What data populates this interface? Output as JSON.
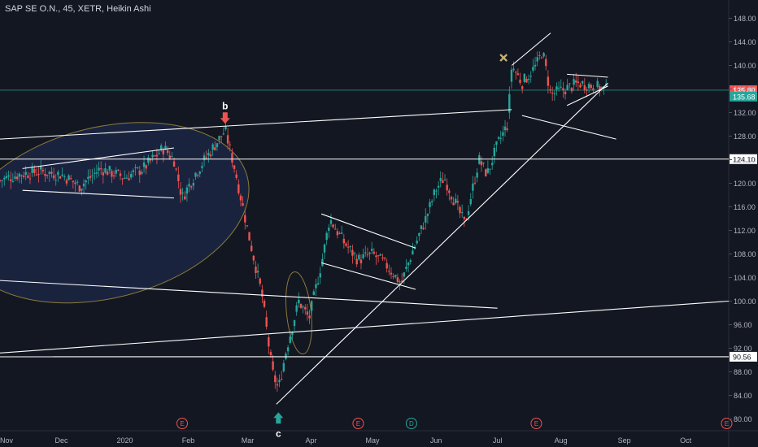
{
  "header": {
    "title": "SAP SE O.N., 45, XETR, Heikin Ashi"
  },
  "colors": {
    "background": "#131722",
    "up": "#26a69a",
    "down": "#ef5350",
    "axis_text": "#b2b5be",
    "drawing": "#ffffff",
    "ellipse_outline": "#8a7a3a",
    "last_price_line": "#26a69a",
    "marker_b": "#ef5350",
    "marker_c": "#26a69a",
    "x_mark": "#c9b26b"
  },
  "chart_data": {
    "type": "candlestick",
    "style": "Heikin Ashi",
    "ylim": [
      78,
      150
    ],
    "xlim": [
      "2019-11-01",
      "2020-10-22"
    ],
    "y_ticks": [
      80,
      84,
      88,
      92,
      96,
      100,
      104,
      108,
      112,
      116,
      120,
      124,
      128,
      132,
      136,
      140,
      144,
      148
    ],
    "y_tick_labels": [
      "80.00",
      "84.00",
      "88.00",
      "92.00",
      "96.00",
      "100.00",
      "104.00",
      "108.00",
      "112.00",
      "116.00",
      "120.00",
      "124.00",
      "128.00",
      "132.00",
      "136.00",
      "140.00",
      "144.00",
      "148.00"
    ],
    "x_ticks": [
      {
        "date": "2019-11-01",
        "label": "Nov"
      },
      {
        "date": "2019-12-01",
        "label": "Dec"
      },
      {
        "date": "2020-01-01",
        "label": "2020"
      },
      {
        "date": "2020-02-01",
        "label": "Feb"
      },
      {
        "date": "2020-03-01",
        "label": "Mar"
      },
      {
        "date": "2020-04-01",
        "label": "Apr"
      },
      {
        "date": "2020-05-01",
        "label": "May"
      },
      {
        "date": "2020-06-01",
        "label": "Jun"
      },
      {
        "date": "2020-07-01",
        "label": "Jul"
      },
      {
        "date": "2020-08-01",
        "label": "Aug"
      },
      {
        "date": "2020-09-01",
        "label": "Sep"
      },
      {
        "date": "2020-10-01",
        "label": "Oct"
      }
    ],
    "price_path": [
      [
        "2019-11-01",
        120.5
      ],
      [
        "2019-11-10",
        121.5
      ],
      [
        "2019-11-20",
        122
      ],
      [
        "2019-12-01",
        121.5
      ],
      [
        "2019-12-10",
        119.5
      ],
      [
        "2019-12-20",
        122.5
      ],
      [
        "2020-01-01",
        121
      ],
      [
        "2020-01-10",
        122.5
      ],
      [
        "2020-01-20",
        126
      ],
      [
        "2020-01-25",
        124
      ],
      [
        "2020-01-29",
        117.5
      ],
      [
        "2020-02-05",
        122
      ],
      [
        "2020-02-12",
        125.5
      ],
      [
        "2020-02-19",
        129
      ],
      [
        "2020-02-24",
        122
      ],
      [
        "2020-03-01",
        112
      ],
      [
        "2020-03-08",
        101
      ],
      [
        "2020-03-13",
        88
      ],
      [
        "2020-03-16",
        85
      ],
      [
        "2020-03-20",
        92
      ],
      [
        "2020-03-26",
        100
      ],
      [
        "2020-03-31",
        97
      ],
      [
        "2020-04-07",
        108
      ],
      [
        "2020-04-10",
        114
      ],
      [
        "2020-04-17",
        110
      ],
      [
        "2020-04-24",
        107
      ],
      [
        "2020-05-01",
        108
      ],
      [
        "2020-05-08",
        106
      ],
      [
        "2020-05-15",
        103
      ],
      [
        "2020-05-20",
        108
      ],
      [
        "2020-05-27",
        114
      ],
      [
        "2020-06-01",
        119
      ],
      [
        "2020-06-05",
        121
      ],
      [
        "2020-06-10",
        117
      ],
      [
        "2020-06-15",
        113
      ],
      [
        "2020-06-22",
        124
      ],
      [
        "2020-06-26",
        121.5
      ],
      [
        "2020-07-01",
        126.5
      ],
      [
        "2020-07-06",
        130
      ],
      [
        "2020-07-08",
        140
      ],
      [
        "2020-07-13",
        137
      ],
      [
        "2020-07-20",
        140
      ],
      [
        "2020-07-23",
        142.5
      ],
      [
        "2020-07-27",
        135
      ],
      [
        "2020-08-03",
        136
      ],
      [
        "2020-08-10",
        137
      ],
      [
        "2020-08-17",
        136.5
      ],
      [
        "2020-08-24",
        135.8
      ]
    ],
    "horizontal_levels": [
      {
        "value": 135.8,
        "label": "135.80",
        "style": "last-price"
      },
      {
        "value": 135.68,
        "label": "135.68",
        "style": "heikin-ashi-close"
      },
      {
        "value": 124.1,
        "label": "124.10",
        "style": "level"
      },
      {
        "value": 90.56,
        "label": "90.56",
        "style": "level"
      }
    ],
    "annotations": [
      {
        "text": "b",
        "date": "2020-02-19",
        "value": 129,
        "type": "arrow-down"
      },
      {
        "text": "c",
        "date": "2020-03-16",
        "value": 85,
        "type": "arrow-up"
      }
    ],
    "events": [
      {
        "label": "E",
        "date": "2020-01-29"
      },
      {
        "label": "E",
        "date": "2020-04-24"
      },
      {
        "label": "D",
        "date": "2020-05-20"
      },
      {
        "label": "E",
        "date": "2020-07-20"
      },
      {
        "label": "E",
        "date": "2020-10-21"
      }
    ],
    "trendlines": [
      {
        "from": [
          "2019-11-01",
          127.5
        ],
        "to": [
          "2020-07-08",
          132.5
        ]
      },
      {
        "from": [
          "2019-11-01",
          103.5
        ],
        "to": [
          "2020-07-01",
          98.8
        ]
      },
      {
        "from": [
          "2019-11-01",
          91.2
        ],
        "to": [
          "2020-10-22",
          100
        ]
      },
      {
        "from": [
          "2019-11-27",
          90.56
        ],
        "to": [
          "2020-10-22",
          90.56
        ]
      },
      {
        "from": [
          "2019-11-12",
          122.5
        ],
        "to": [
          "2020-01-25",
          126
        ]
      },
      {
        "from": [
          "2019-11-12",
          118.8
        ],
        "to": [
          "2020-01-25",
          117.5
        ]
      },
      {
        "from": [
          "2020-03-15",
          82.5
        ],
        "to": [
          "2020-08-24",
          137
        ]
      },
      {
        "from": [
          "2020-04-06",
          114.8
        ],
        "to": [
          "2020-05-22",
          109
        ]
      },
      {
        "from": [
          "2020-04-06",
          106.5
        ],
        "to": [
          "2020-05-22",
          102
        ]
      },
      {
        "from": [
          "2020-07-08",
          140
        ],
        "to": [
          "2020-07-27",
          145.5
        ]
      },
      {
        "from": [
          "2020-07-13",
          131.5
        ],
        "to": [
          "2020-08-28",
          127.5
        ]
      },
      {
        "from": [
          "2020-08-04",
          138.5
        ],
        "to": [
          "2020-08-24",
          138
        ]
      },
      {
        "from": [
          "2020-08-04",
          133.2
        ],
        "to": [
          "2020-08-24",
          136.5
        ]
      }
    ],
    "ellipses": [
      {
        "center": [
          "2019-12-22",
          115
        ],
        "rx_days": 72,
        "ry_price": 14.5,
        "angle": -14,
        "fill": true
      },
      {
        "center": [
          "2020-03-26",
          98
        ],
        "rx_days": 6,
        "ry_price": 7,
        "angle": -6,
        "fill": false
      }
    ]
  }
}
